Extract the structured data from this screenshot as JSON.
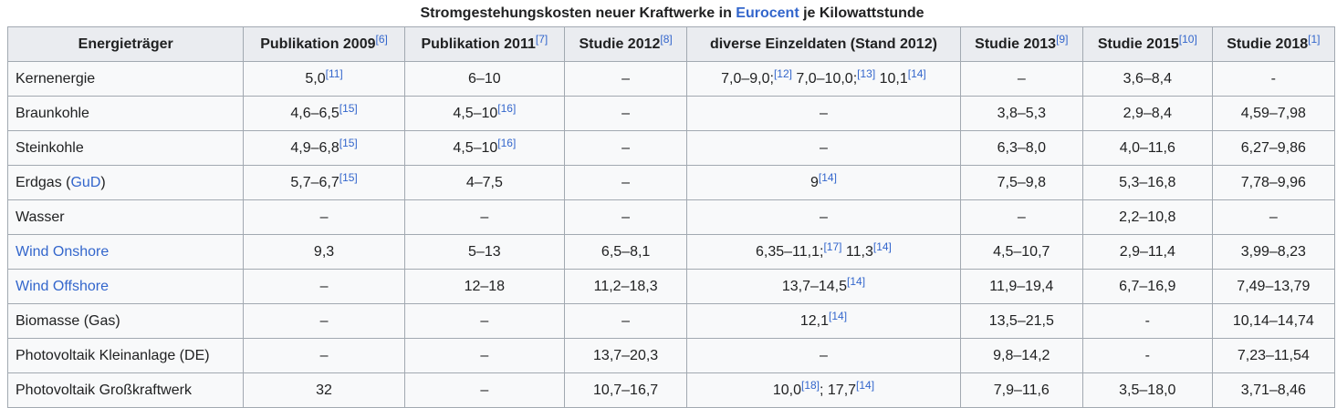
{
  "caption": {
    "before": "Stromgestehungskosten neuer Kraftwerke in ",
    "link": "Eurocent",
    "after": " je Kilowattstunde"
  },
  "colors": {
    "link": "#3366cc",
    "header_bg": "#eaecf0",
    "cell_bg": "#f8f9fa",
    "border": "#a2a9b1"
  },
  "headers": [
    [
      {
        "text": "Energieträger"
      }
    ],
    [
      {
        "text": "Publikation 2009",
        "ref": "[6]"
      }
    ],
    [
      {
        "text": "Publikation 2011",
        "ref": "[7]"
      }
    ],
    [
      {
        "text": "Studie 2012",
        "ref": "[8]"
      }
    ],
    [
      {
        "text": "diverse Einzeldaten (Stand 2012)"
      }
    ],
    [
      {
        "text": "Studie 2013",
        "ref": "[9]"
      }
    ],
    [
      {
        "text": "Studie 2015",
        "ref": "[10]"
      }
    ],
    [
      {
        "text": "Studie 2018",
        "ref": "[1]"
      }
    ]
  ],
  "rows": [
    {
      "label": [
        {
          "text": "Kernenergie"
        }
      ],
      "cells": [
        [
          {
            "text": "5,0",
            "ref": "[11]"
          }
        ],
        [
          {
            "text": "6–10"
          }
        ],
        [
          {
            "text": "–"
          }
        ],
        [
          {
            "text": "7,0–9,0;",
            "ref": "[12]"
          },
          {
            "text": " 7,0–10,0;",
            "ref": "[13]"
          },
          {
            "text": " 10,1",
            "ref": "[14]"
          }
        ],
        [
          {
            "text": "–"
          }
        ],
        [
          {
            "text": "3,6–8,4"
          }
        ],
        [
          {
            "text": "-"
          }
        ]
      ]
    },
    {
      "label": [
        {
          "text": "Braunkohle"
        }
      ],
      "cells": [
        [
          {
            "text": "4,6–6,5",
            "ref": "[15]"
          }
        ],
        [
          {
            "text": "4,5–10",
            "ref": "[16]"
          }
        ],
        [
          {
            "text": "–"
          }
        ],
        [
          {
            "text": "–"
          }
        ],
        [
          {
            "text": "3,8–5,3"
          }
        ],
        [
          {
            "text": "2,9–8,4"
          }
        ],
        [
          {
            "text": "4,59–7,98"
          }
        ]
      ]
    },
    {
      "label": [
        {
          "text": "Steinkohle"
        }
      ],
      "cells": [
        [
          {
            "text": "4,9–6,8",
            "ref": "[15]"
          }
        ],
        [
          {
            "text": "4,5–10",
            "ref": "[16]"
          }
        ],
        [
          {
            "text": "–"
          }
        ],
        [
          {
            "text": "–"
          }
        ],
        [
          {
            "text": "6,3–8,0"
          }
        ],
        [
          {
            "text": "4,0–11,6"
          }
        ],
        [
          {
            "text": "6,27–9,86"
          }
        ]
      ]
    },
    {
      "label": [
        {
          "text": "Erdgas ("
        },
        {
          "text": "GuD",
          "link": true
        },
        {
          "text": ")"
        }
      ],
      "cells": [
        [
          {
            "text": "5,7–6,7",
            "ref": "[15]"
          }
        ],
        [
          {
            "text": "4–7,5"
          }
        ],
        [
          {
            "text": "–"
          }
        ],
        [
          {
            "text": "9",
            "ref": "[14]"
          }
        ],
        [
          {
            "text": "7,5–9,8"
          }
        ],
        [
          {
            "text": "5,3–16,8"
          }
        ],
        [
          {
            "text": "7,78–9,96"
          }
        ]
      ]
    },
    {
      "label": [
        {
          "text": "Wasser"
        }
      ],
      "cells": [
        [
          {
            "text": "–"
          }
        ],
        [
          {
            "text": "–"
          }
        ],
        [
          {
            "text": "–"
          }
        ],
        [
          {
            "text": "–"
          }
        ],
        [
          {
            "text": "–"
          }
        ],
        [
          {
            "text": "2,2–10,8"
          }
        ],
        [
          {
            "text": "–"
          }
        ]
      ]
    },
    {
      "label": [
        {
          "text": "Wind Onshore",
          "link": true
        }
      ],
      "cells": [
        [
          {
            "text": "9,3"
          }
        ],
        [
          {
            "text": "5–13"
          }
        ],
        [
          {
            "text": "6,5–8,1"
          }
        ],
        [
          {
            "text": "6,35–11,1;",
            "ref": "[17]"
          },
          {
            "text": " 11,3",
            "ref": "[14]"
          }
        ],
        [
          {
            "text": "4,5–10,7"
          }
        ],
        [
          {
            "text": "2,9–11,4"
          }
        ],
        [
          {
            "text": "3,99–8,23"
          }
        ]
      ]
    },
    {
      "label": [
        {
          "text": "Wind Offshore",
          "link": true
        }
      ],
      "cells": [
        [
          {
            "text": "–"
          }
        ],
        [
          {
            "text": "12–18"
          }
        ],
        [
          {
            "text": "11,2–18,3"
          }
        ],
        [
          {
            "text": "13,7–14,5",
            "ref": "[14]"
          }
        ],
        [
          {
            "text": "11,9–19,4"
          }
        ],
        [
          {
            "text": "6,7–16,9"
          }
        ],
        [
          {
            "text": "7,49–13,79"
          }
        ]
      ]
    },
    {
      "label": [
        {
          "text": "Biomasse (Gas)"
        }
      ],
      "cells": [
        [
          {
            "text": "–"
          }
        ],
        [
          {
            "text": "–"
          }
        ],
        [
          {
            "text": "–"
          }
        ],
        [
          {
            "text": "12,1",
            "ref": "[14]"
          }
        ],
        [
          {
            "text": "13,5–21,5"
          }
        ],
        [
          {
            "text": "-"
          }
        ],
        [
          {
            "text": "10,14–14,74"
          }
        ]
      ]
    },
    {
      "label": [
        {
          "text": "Photovoltaik Kleinanlage (DE)"
        }
      ],
      "cells": [
        [
          {
            "text": "–"
          }
        ],
        [
          {
            "text": "–"
          }
        ],
        [
          {
            "text": "13,7–20,3"
          }
        ],
        [
          {
            "text": "–"
          }
        ],
        [
          {
            "text": "9,8–14,2"
          }
        ],
        [
          {
            "text": "-"
          }
        ],
        [
          {
            "text": "7,23–11,54"
          }
        ]
      ]
    },
    {
      "label": [
        {
          "text": "Photovoltaik Großkraftwerk"
        }
      ],
      "cells": [
        [
          {
            "text": "32"
          }
        ],
        [
          {
            "text": "–"
          }
        ],
        [
          {
            "text": "10,7–16,7"
          }
        ],
        [
          {
            "text": "10,0",
            "ref": "[18]"
          },
          {
            "text": "; 17,7",
            "ref": "[14]"
          }
        ],
        [
          {
            "text": "7,9–11,6"
          }
        ],
        [
          {
            "text": "3,5–18,0"
          }
        ],
        [
          {
            "text": "3,71–8,46"
          }
        ]
      ]
    }
  ]
}
